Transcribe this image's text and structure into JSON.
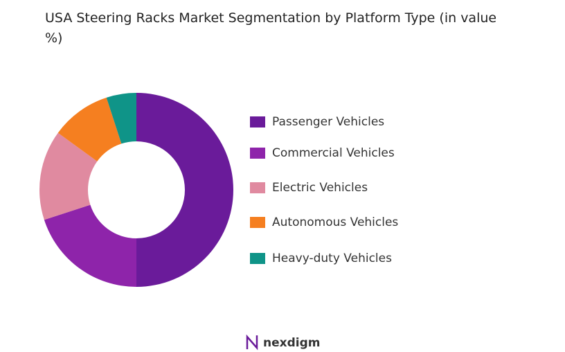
{
  "chart_data": {
    "type": "donut",
    "title": "USA Steering Racks Market Segmentation by Platform Type (in value %)",
    "categories": [
      "Passenger Vehicles",
      "Commercial Vehicles",
      "Electric Vehicles",
      "Autonomous Vehicles",
      "Heavy-duty Vehicles"
    ],
    "values": [
      50,
      20,
      15,
      10,
      5
    ],
    "colors": [
      "#6a1b9a",
      "#8e24aa",
      "#e08aa0",
      "#f57f20",
      "#0f9488"
    ],
    "legend": "right"
  },
  "logo": "nexdigm"
}
